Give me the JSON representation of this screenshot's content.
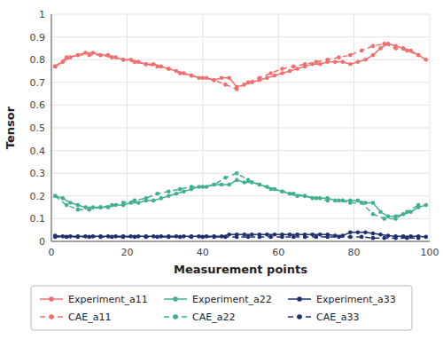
{
  "chart_data": {
    "type": "line",
    "xlabel": "Measurement points",
    "ylabel": "Tensor",
    "xlim": [
      0,
      100
    ],
    "ylim": [
      0,
      1
    ],
    "xticks": [
      0,
      20,
      40,
      60,
      80,
      100
    ],
    "yticks": [
      0,
      0.1,
      0.2,
      0.3,
      0.4,
      0.5,
      0.6,
      0.7,
      0.8,
      0.9,
      1
    ],
    "grid": true,
    "legend": "bottom",
    "series": [
      {
        "name": "Experiment_a11",
        "color": "#f07070",
        "line_style": "solid",
        "marker": "circle",
        "x": [
          1,
          3,
          5,
          7,
          9,
          11,
          13,
          15,
          17,
          19,
          21,
          23,
          25,
          27,
          29,
          31,
          33,
          35,
          37,
          39,
          41,
          43,
          45,
          47,
          49,
          51,
          53,
          55,
          57,
          59,
          61,
          63,
          65,
          67,
          69,
          71,
          73,
          75,
          77,
          79,
          81,
          83,
          85,
          87,
          89,
          91,
          93,
          95,
          97,
          99
        ],
        "values": [
          0.77,
          0.79,
          0.81,
          0.82,
          0.83,
          0.83,
          0.82,
          0.82,
          0.81,
          0.8,
          0.8,
          0.79,
          0.78,
          0.78,
          0.77,
          0.76,
          0.75,
          0.74,
          0.73,
          0.72,
          0.72,
          0.71,
          0.72,
          0.72,
          0.68,
          0.69,
          0.7,
          0.71,
          0.72,
          0.73,
          0.74,
          0.75,
          0.76,
          0.77,
          0.78,
          0.78,
          0.79,
          0.79,
          0.79,
          0.78,
          0.79,
          0.8,
          0.82,
          0.85,
          0.87,
          0.86,
          0.85,
          0.84,
          0.82,
          0.8
        ]
      },
      {
        "name": "Experiment_a22",
        "color": "#40b090",
        "line_style": "solid",
        "marker": "circle",
        "x": [
          1,
          3,
          5,
          7,
          9,
          11,
          13,
          15,
          17,
          19,
          21,
          23,
          25,
          27,
          29,
          31,
          33,
          35,
          37,
          39,
          41,
          43,
          45,
          47,
          49,
          51,
          53,
          55,
          57,
          59,
          61,
          63,
          65,
          67,
          69,
          71,
          73,
          75,
          77,
          79,
          81,
          83,
          85,
          87,
          89,
          91,
          93,
          95,
          97,
          99
        ],
        "values": [
          0.2,
          0.19,
          0.17,
          0.16,
          0.15,
          0.15,
          0.15,
          0.15,
          0.16,
          0.16,
          0.17,
          0.17,
          0.18,
          0.18,
          0.19,
          0.2,
          0.21,
          0.22,
          0.23,
          0.24,
          0.24,
          0.25,
          0.25,
          0.25,
          0.27,
          0.26,
          0.26,
          0.25,
          0.24,
          0.23,
          0.22,
          0.21,
          0.2,
          0.2,
          0.19,
          0.19,
          0.19,
          0.18,
          0.18,
          0.18,
          0.18,
          0.17,
          0.17,
          0.13,
          0.11,
          0.11,
          0.12,
          0.13,
          0.15,
          0.16
        ]
      },
      {
        "name": "Experiment_a33",
        "color": "#203070",
        "line_style": "solid",
        "marker": "circle",
        "x": [
          1,
          3,
          5,
          7,
          9,
          11,
          13,
          15,
          17,
          19,
          21,
          23,
          25,
          27,
          29,
          31,
          33,
          35,
          37,
          39,
          41,
          43,
          45,
          47,
          49,
          51,
          53,
          55,
          57,
          59,
          61,
          63,
          65,
          67,
          69,
          71,
          73,
          75,
          77,
          79,
          81,
          83,
          85,
          87,
          89,
          91,
          93,
          95,
          97,
          99
        ],
        "values": [
          0.025,
          0.022,
          0.022,
          0.022,
          0.022,
          0.022,
          0.022,
          0.022,
          0.022,
          0.022,
          0.022,
          0.022,
          0.022,
          0.022,
          0.022,
          0.022,
          0.022,
          0.022,
          0.022,
          0.022,
          0.022,
          0.022,
          0.022,
          0.03,
          0.03,
          0.03,
          0.03,
          0.03,
          0.03,
          0.03,
          0.03,
          0.03,
          0.03,
          0.03,
          0.03,
          0.03,
          0.03,
          0.025,
          0.025,
          0.04,
          0.04,
          0.04,
          0.035,
          0.03,
          0.025,
          0.022,
          0.022,
          0.022,
          0.022,
          0.02
        ]
      },
      {
        "name": "CAE_a11",
        "color": "#f07070",
        "line_style": "dashed",
        "marker": "circle",
        "x": [
          1,
          4,
          7,
          10,
          13,
          16,
          19,
          22,
          25,
          28,
          31,
          34,
          37,
          40,
          43,
          46,
          49,
          52,
          55,
          58,
          61,
          64,
          67,
          70,
          73,
          76,
          79,
          82,
          85,
          88,
          91,
          94,
          97
        ],
        "values": [
          0.77,
          0.81,
          0.82,
          0.82,
          0.82,
          0.81,
          0.8,
          0.79,
          0.78,
          0.77,
          0.76,
          0.74,
          0.73,
          0.72,
          0.71,
          0.69,
          0.67,
          0.7,
          0.72,
          0.74,
          0.76,
          0.77,
          0.78,
          0.79,
          0.8,
          0.81,
          0.82,
          0.84,
          0.86,
          0.87,
          0.85,
          0.84,
          0.82
        ]
      },
      {
        "name": "CAE_a22",
        "color": "#40b090",
        "line_style": "dashed",
        "marker": "circle",
        "x": [
          1,
          4,
          7,
          10,
          13,
          16,
          19,
          22,
          25,
          28,
          31,
          34,
          37,
          40,
          43,
          46,
          49,
          52,
          55,
          58,
          61,
          64,
          67,
          70,
          73,
          76,
          79,
          82,
          85,
          88,
          91,
          94,
          97
        ],
        "values": [
          0.2,
          0.16,
          0.14,
          0.14,
          0.15,
          0.16,
          0.17,
          0.18,
          0.19,
          0.21,
          0.22,
          0.23,
          0.24,
          0.24,
          0.25,
          0.28,
          0.3,
          0.27,
          0.25,
          0.23,
          0.22,
          0.21,
          0.2,
          0.19,
          0.18,
          0.18,
          0.17,
          0.17,
          0.12,
          0.1,
          0.1,
          0.13,
          0.16
        ]
      },
      {
        "name": "CAE_a33",
        "color": "#203070",
        "line_style": "dashed",
        "marker": "circle",
        "x": [
          1,
          4,
          7,
          10,
          13,
          16,
          19,
          22,
          25,
          28,
          31,
          34,
          37,
          40,
          43,
          46,
          49,
          52,
          55,
          58,
          61,
          64,
          67,
          70,
          73,
          76,
          79,
          82,
          85,
          88,
          91,
          94,
          97
        ],
        "values": [
          0.02,
          0.02,
          0.02,
          0.02,
          0.02,
          0.02,
          0.02,
          0.02,
          0.02,
          0.02,
          0.02,
          0.02,
          0.02,
          0.02,
          0.02,
          0.02,
          0.02,
          0.02,
          0.02,
          0.02,
          0.02,
          0.02,
          0.02,
          0.02,
          0.02,
          0.02,
          0.02,
          0.02,
          0.015,
          0.015,
          0.015,
          0.015,
          0.015
        ]
      }
    ]
  }
}
